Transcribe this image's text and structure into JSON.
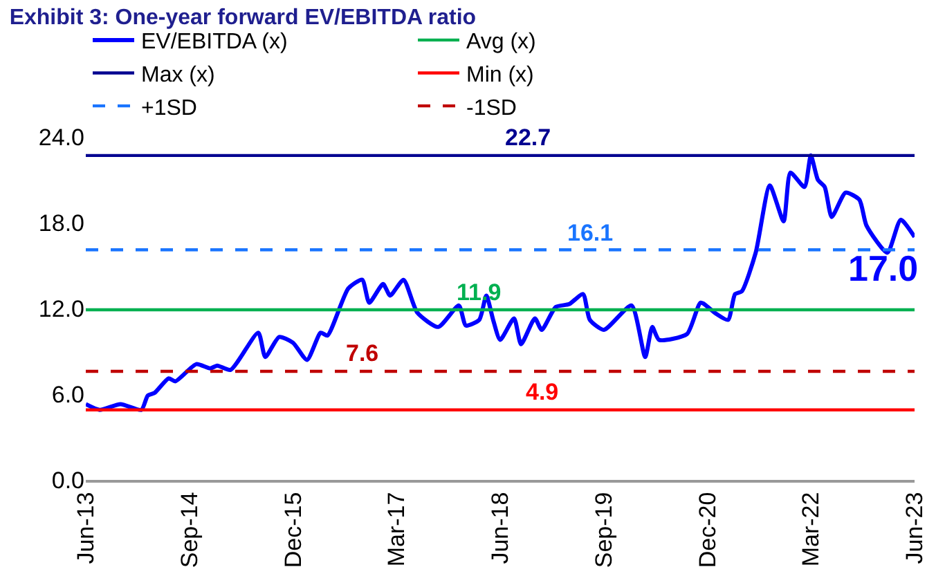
{
  "chart_data": {
    "type": "line",
    "title": "Exhibit 3: One-year forward EV/EBITDA ratio",
    "legend": "top",
    "marker": "none",
    "xlim": [
      "2013-06-01",
      "2023-06-01"
    ],
    "xticks": [
      {
        "value": "2013-06-01",
        "label": "Jun-13"
      },
      {
        "value": "2014-09-01",
        "label": "Sep-14"
      },
      {
        "value": "2015-12-01",
        "label": "Dec-15"
      },
      {
        "value": "2017-03-01",
        "label": "Mar-17"
      },
      {
        "value": "2018-06-01",
        "label": "Jun-18"
      },
      {
        "value": "2019-09-01",
        "label": "Sep-19"
      },
      {
        "value": "2020-12-01",
        "label": "Dec-20"
      },
      {
        "value": "2022-03-01",
        "label": "Mar-22"
      },
      {
        "value": "2023-06-01",
        "label": "Jun-23"
      }
    ],
    "ylim": [
      0,
      24
    ],
    "yticks": [
      {
        "value": 0,
        "label": "0.0"
      },
      {
        "value": 6,
        "label": "6.0"
      },
      {
        "value": 12,
        "label": "12.0"
      },
      {
        "value": 18,
        "label": "18.0"
      },
      {
        "value": 24,
        "label": "24.0"
      }
    ],
    "series": [
      {
        "name": "EV/EBITDA (x)",
        "color": "#0000ff",
        "line_style": "solid",
        "x": [
          "2013-06",
          "2013-08",
          "2013-11",
          "2014-02",
          "2014-03",
          "2014-04",
          "2014-06",
          "2014-07",
          "2014-10",
          "2014-12",
          "2015-01",
          "2015-03",
          "2015-07",
          "2015-08",
          "2015-10",
          "2015-12",
          "2016-02",
          "2016-04",
          "2016-05",
          "2016-08",
          "2016-10",
          "2016-11",
          "2017-01",
          "2017-02",
          "2017-04",
          "2017-06",
          "2017-09",
          "2017-12",
          "2018-01",
          "2018-03",
          "2018-04",
          "2018-05",
          "2018-06",
          "2018-08",
          "2018-09",
          "2018-11",
          "2018-12",
          "2019-02",
          "2019-04",
          "2019-06",
          "2019-07",
          "2019-09",
          "2020-01",
          "2020-03",
          "2020-04",
          "2020-05",
          "2020-09",
          "2020-11",
          "2021-01",
          "2021-03",
          "2021-04",
          "2021-05",
          "2021-07",
          "2021-09",
          "2021-11",
          "2021-12",
          "2022-02",
          "2022-03",
          "2022-04",
          "2022-05",
          "2022-06",
          "2022-08",
          "2022-10",
          "2022-11",
          "2023-02",
          "2023-04",
          "2023-06"
        ],
        "values": [
          5.3,
          4.9,
          5.3,
          4.9,
          5.9,
          6.1,
          7.1,
          6.9,
          8.1,
          7.8,
          8.0,
          7.7,
          10.3,
          8.6,
          10.0,
          9.6,
          8.4,
          10.3,
          10.1,
          13.4,
          14.0,
          12.4,
          13.7,
          12.9,
          14.0,
          11.7,
          10.7,
          12.2,
          10.8,
          11.2,
          12.9,
          11.2,
          9.8,
          11.3,
          9.5,
          11.3,
          10.5,
          12.1,
          12.3,
          13.0,
          11.2,
          10.5,
          12.2,
          8.6,
          10.7,
          9.8,
          10.2,
          12.4,
          11.7,
          11.2,
          13.0,
          13.2,
          15.9,
          20.6,
          18.1,
          21.5,
          20.5,
          22.7,
          21.0,
          20.5,
          18.4,
          20.1,
          19.6,
          17.8,
          15.9,
          18.2,
          17.0
        ]
      },
      {
        "name": "Avg (x)",
        "color": "#00b050",
        "line_style": "solid",
        "x": [
          "2013-06-01",
          "2023-06-01"
        ],
        "values": [
          11.9,
          11.9
        ]
      },
      {
        "name": "Max (x)",
        "color": "#000090",
        "line_style": "solid",
        "x": [
          "2013-06-01",
          "2023-06-01"
        ],
        "values": [
          22.7,
          22.7
        ]
      },
      {
        "name": "Min (x)",
        "color": "#ff0000",
        "line_style": "solid",
        "x": [
          "2013-06-01",
          "2023-06-01"
        ],
        "values": [
          4.9,
          4.9
        ]
      },
      {
        "name": "+1SD",
        "color": "#1a75ff",
        "line_style": "dashed",
        "x": [
          "2013-06-01",
          "2023-06-01"
        ],
        "values": [
          16.1,
          16.1
        ]
      },
      {
        "name": "-1SD",
        "color": "#c00000",
        "line_style": "dashed",
        "x": [
          "2013-06-01",
          "2023-06-01"
        ],
        "values": [
          7.6,
          7.6
        ]
      }
    ],
    "annotations": [
      {
        "text": "22.7",
        "x": "2018-10-01",
        "y": 22.7
      },
      {
        "text": "16.1",
        "x": "2019-07-01",
        "y": 16.1
      },
      {
        "text": "11.9",
        "x": "2018-03-01",
        "y": 11.9
      },
      {
        "text": "7.6",
        "x": "2016-10-01",
        "y": 7.6
      },
      {
        "text": "4.9",
        "x": "2018-12-01",
        "y": 4.9
      },
      {
        "text": "17.0",
        "x": "2023-04-01",
        "y": 17.0
      }
    ]
  }
}
